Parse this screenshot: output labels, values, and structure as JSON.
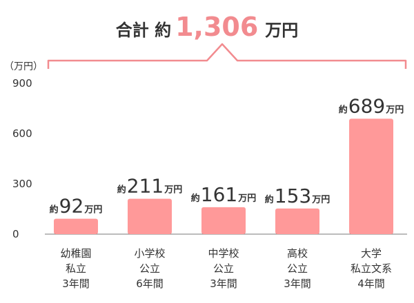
{
  "colors": {
    "bar": "#ff9999",
    "accent": "#f28b8f",
    "text": "#333333",
    "axis": "#777777"
  },
  "chart_data": {
    "type": "bar",
    "total": {
      "prefix": "合計 約",
      "value": "1,306",
      "unit": "万円"
    },
    "ylabel": "（万円）",
    "ylim": [
      0,
      900
    ],
    "yticks": [
      {
        "value": 0,
        "label": "0"
      },
      {
        "value": 300,
        "label": "300"
      },
      {
        "value": 600,
        "label": "600"
      },
      {
        "value": 900,
        "label": "900"
      }
    ],
    "categories": [
      {
        "lines": [
          "幼稚園",
          "私立",
          "3年間"
        ],
        "value": 92,
        "prefix": "約",
        "label": "92",
        "unit": "万円"
      },
      {
        "lines": [
          "小学校",
          "公立",
          "6年間"
        ],
        "value": 211,
        "prefix": "約",
        "label": "211",
        "unit": "万円"
      },
      {
        "lines": [
          "中学校",
          "公立",
          "3年間"
        ],
        "value": 161,
        "prefix": "約",
        "label": "161",
        "unit": "万円"
      },
      {
        "lines": [
          "高校",
          "公立",
          "3年間"
        ],
        "value": 153,
        "prefix": "約",
        "label": "153",
        "unit": "万円"
      },
      {
        "lines": [
          "大学",
          "私立文系",
          "4年間"
        ],
        "value": 689,
        "prefix": "約",
        "label": "689",
        "unit": "万円"
      }
    ]
  }
}
